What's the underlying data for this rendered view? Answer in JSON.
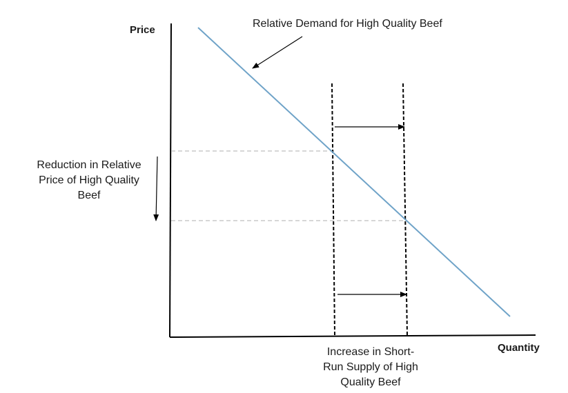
{
  "axes": {
    "y_label": "Price",
    "x_label": "Quantity"
  },
  "annotations": {
    "demand_label": "Relative Demand for High Quality Beef",
    "price_label": [
      "Reduction in Relative",
      "Price of High Quality",
      "Beef"
    ],
    "supply_label": [
      "Increase in Short-",
      "Run Supply of High",
      "Quality Beef"
    ]
  },
  "colors": {
    "demand_line": "#6fa3c8",
    "axis": "#000000",
    "guide": "#c8c8c8"
  }
}
